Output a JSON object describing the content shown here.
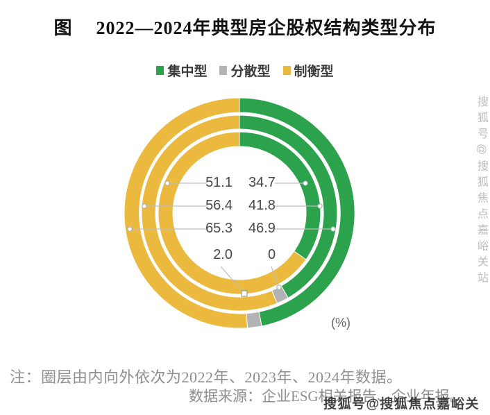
{
  "header": {
    "figure_prefix": "图",
    "title": "2022—2024年典型房企股权结构类型分布"
  },
  "footnotes": {
    "note": "注：圈层由内向外依次为2022年、2023年、2024年数据。",
    "source": "数据来源：企业ESG相关报告、企业年报。"
  },
  "watermarks": {
    "vertical": "搜狐号@搜狐焦点嘉峪关站",
    "bottom": "搜狐号@搜狐焦点嘉峪关站"
  },
  "chart_data": {
    "type": "pie",
    "subtype": "multi-ring-donut",
    "title": "2022—2024年典型房企股权结构类型分布",
    "unit_label": "(%)",
    "rings_inner_to_outer": [
      "2022年",
      "2023年",
      "2024年"
    ],
    "start_angle": "top, clockwise",
    "series": [
      {
        "name": "集中型",
        "color": "#2da24c",
        "values": [
          34.7,
          41.8,
          46.9
        ]
      },
      {
        "name": "分散型",
        "color": "#b3b3b3",
        "values": [
          0,
          2.0,
          2.0
        ]
      },
      {
        "name": "制衡型",
        "color": "#eab93d",
        "values": [
          65.3,
          56.4,
          51.1
        ]
      }
    ],
    "center_labels": [
      [
        "51.1",
        "34.7"
      ],
      [
        "56.4",
        "41.8"
      ],
      [
        "65.3",
        "46.9"
      ],
      [
        "2.0",
        "0"
      ]
    ],
    "leader_line_color": "#bdbdbd"
  }
}
